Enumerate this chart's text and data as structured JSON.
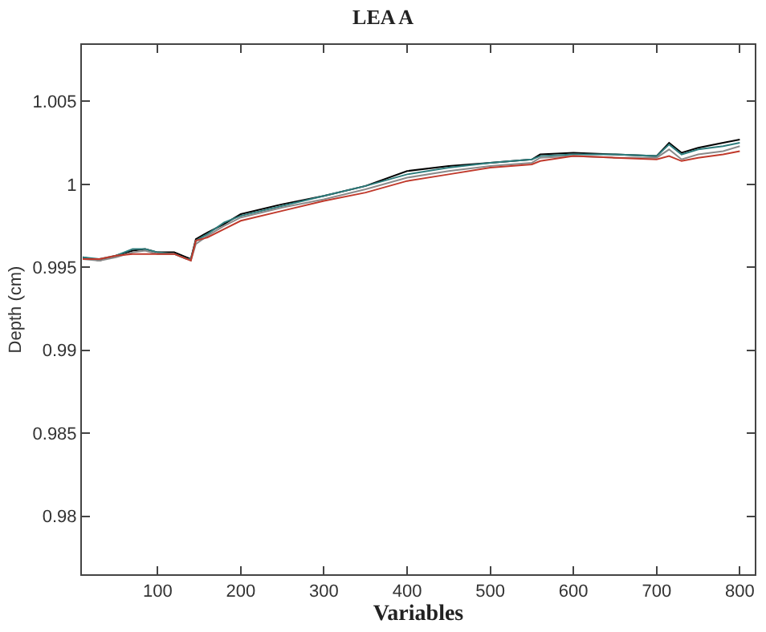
{
  "chart_data": {
    "type": "line",
    "title": "LEA A",
    "xlabel": "Variables",
    "ylabel": "Depth (cm)",
    "x": [
      10,
      30,
      50,
      70,
      85,
      100,
      120,
      135,
      140,
      146,
      160,
      180,
      200,
      250,
      300,
      350,
      400,
      450,
      500,
      550,
      560,
      600,
      650,
      700,
      715,
      730,
      750,
      780,
      800
    ],
    "series": [
      {
        "color": "#000000",
        "values": [
          0.9956,
          0.9954,
          0.9957,
          0.996,
          0.9961,
          0.9959,
          0.9959,
          0.9956,
          0.9955,
          0.9967,
          0.9971,
          0.9976,
          0.9982,
          0.9988,
          0.9993,
          0.9999,
          1.0008,
          1.0011,
          1.0013,
          1.0015,
          1.0018,
          1.0019,
          1.0018,
          1.0017,
          1.0025,
          1.0019,
          1.0022,
          1.0025,
          1.0027
        ]
      },
      {
        "color": "#2e7d7d",
        "values": [
          0.9956,
          0.9955,
          0.9957,
          0.9961,
          0.9961,
          0.9959,
          0.9958,
          0.9955,
          0.9955,
          0.9966,
          0.997,
          0.9977,
          0.9981,
          0.9987,
          0.9993,
          0.9999,
          1.0006,
          1.001,
          1.0013,
          1.0015,
          1.0017,
          1.0018,
          1.0018,
          1.0017,
          1.0024,
          1.0018,
          1.0021,
          1.0023,
          1.0025
        ]
      },
      {
        "color": "#8a8a8a",
        "values": [
          0.9955,
          0.9954,
          0.9956,
          0.9959,
          0.996,
          0.9958,
          0.9958,
          0.9955,
          0.9954,
          0.9964,
          0.9969,
          0.9975,
          0.998,
          0.9986,
          0.9991,
          0.9997,
          1.0004,
          1.0008,
          1.0011,
          1.0013,
          1.0016,
          1.0017,
          1.0016,
          1.0016,
          1.0021,
          1.0015,
          1.0018,
          1.002,
          1.0023
        ]
      },
      {
        "color": "#c0392b",
        "values": [
          0.9955,
          0.9955,
          0.9957,
          0.9958,
          0.9958,
          0.9958,
          0.9958,
          0.9955,
          0.9954,
          0.9966,
          0.9968,
          0.9973,
          0.9978,
          0.9984,
          0.999,
          0.9995,
          1.0002,
          1.0006,
          1.001,
          1.0012,
          1.0014,
          1.0017,
          1.0016,
          1.0015,
          1.0017,
          1.0014,
          1.0016,
          1.0018,
          1.002
        ]
      }
    ],
    "xlim": [
      9,
      818
    ],
    "ylim": [
      0.9765,
      1.0084
    ],
    "xticks": [
      100,
      200,
      300,
      400,
      500,
      600,
      700,
      800
    ],
    "yticks": [
      0.98,
      0.985,
      0.99,
      0.995,
      1,
      1.005
    ]
  }
}
